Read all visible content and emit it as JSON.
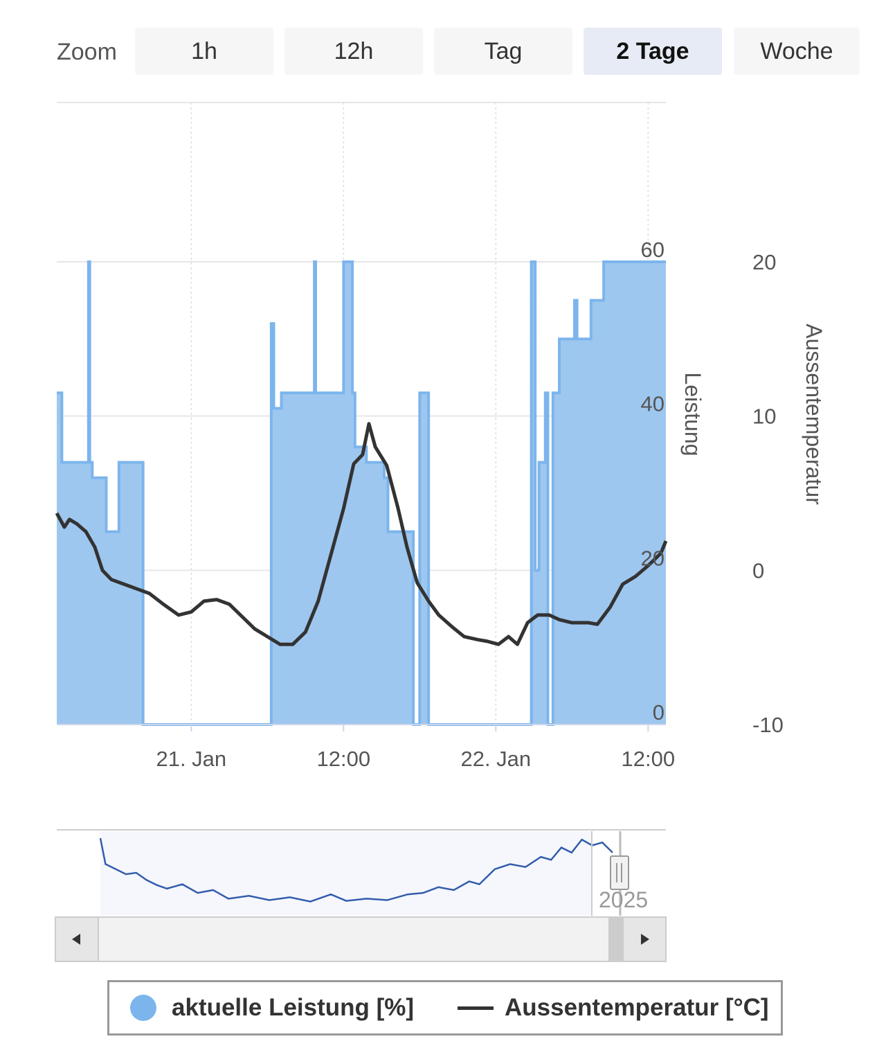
{
  "zoom": {
    "label": "Zoom",
    "buttons": [
      "1h",
      "12h",
      "Tag",
      "2 Tage",
      "Woche"
    ],
    "active_index": 3
  },
  "colors": {
    "power_fill": "#9ec7ef",
    "power_line": "#7cb5ec",
    "temperature_line": "#333333",
    "navigator_line": "#335cad",
    "active_button": "#e6ebf5"
  },
  "chart_data": {
    "type": "area",
    "x_unit": "hour since 21. Jan 00:00",
    "x_ticks": [
      {
        "x": 0,
        "label": "21. Jan"
      },
      {
        "x": 12,
        "label": "12:00"
      },
      {
        "x": 24,
        "label": "22. Jan"
      },
      {
        "x": 36,
        "label": "12:00"
      }
    ],
    "xlim": [
      -10.6,
      37.4
    ],
    "y_axes": [
      {
        "name": "Leistung",
        "ticks": [
          "0",
          "20",
          "40",
          "60"
        ],
        "ylim": [
          0,
          60
        ]
      },
      {
        "name": "Aussentemperatur",
        "ticks": [
          "-10",
          "0",
          "10",
          "20"
        ],
        "ylim": [
          -10,
          20
        ]
      }
    ],
    "series": [
      {
        "name": "aktuelle Leistung [%]",
        "type": "area-step",
        "axis": 0,
        "points": [
          [
            -10.6,
            43
          ],
          [
            -10.2,
            34
          ],
          [
            -8.3,
            34
          ],
          [
            -8.1,
            60
          ],
          [
            -8.0,
            34
          ],
          [
            -7.8,
            32
          ],
          [
            -6.7,
            25
          ],
          [
            -5.7,
            34
          ],
          [
            -3.8,
            0
          ],
          [
            6.3,
            0
          ],
          [
            6.3,
            52
          ],
          [
            6.5,
            41
          ],
          [
            7.1,
            43
          ],
          [
            9.6,
            43
          ],
          [
            9.7,
            60
          ],
          [
            9.8,
            43
          ],
          [
            11.8,
            43
          ],
          [
            12.0,
            60
          ],
          [
            12.7,
            43
          ],
          [
            12.9,
            36
          ],
          [
            13.8,
            34
          ],
          [
            15.2,
            32
          ],
          [
            15.5,
            25
          ],
          [
            17.5,
            25
          ],
          [
            17.5,
            0
          ],
          [
            18.0,
            43
          ],
          [
            18.7,
            0
          ],
          [
            26.7,
            0
          ],
          [
            26.8,
            60
          ],
          [
            27.1,
            20
          ],
          [
            27.4,
            34
          ],
          [
            27.9,
            43
          ],
          [
            28.1,
            0
          ],
          [
            28.5,
            43
          ],
          [
            29.0,
            50
          ],
          [
            30.0,
            50
          ],
          [
            30.2,
            55
          ],
          [
            30.4,
            50
          ],
          [
            31.5,
            55
          ],
          [
            32.5,
            60
          ]
        ]
      },
      {
        "name": "Aussentemperatur [°C]",
        "type": "line",
        "axis": 1,
        "points": [
          [
            -10.6,
            3.7
          ],
          [
            -10.0,
            2.8
          ],
          [
            -9.6,
            3.3
          ],
          [
            -9.0,
            3.0
          ],
          [
            -8.3,
            2.5
          ],
          [
            -7.6,
            1.5
          ],
          [
            -7.0,
            0.0
          ],
          [
            -6.3,
            -0.6
          ],
          [
            -5.3,
            -0.9
          ],
          [
            -4.3,
            -1.2
          ],
          [
            -3.3,
            -1.5
          ],
          [
            -2.2,
            -2.2
          ],
          [
            -1.0,
            -2.9
          ],
          [
            0.0,
            -2.7
          ],
          [
            1.0,
            -2.0
          ],
          [
            2.0,
            -1.9
          ],
          [
            3.0,
            -2.2
          ],
          [
            4.0,
            -3.0
          ],
          [
            5.0,
            -3.8
          ],
          [
            6.0,
            -4.3
          ],
          [
            7.0,
            -4.8
          ],
          [
            8.0,
            -4.8
          ],
          [
            9.0,
            -4.0
          ],
          [
            10.0,
            -2.0
          ],
          [
            11.0,
            1.0
          ],
          [
            12.0,
            4.0
          ],
          [
            12.8,
            6.9
          ],
          [
            13.5,
            7.5
          ],
          [
            14.0,
            9.5
          ],
          [
            14.5,
            8.0
          ],
          [
            15.4,
            6.8
          ],
          [
            16.3,
            4.0
          ],
          [
            17.0,
            1.5
          ],
          [
            17.8,
            -0.8
          ],
          [
            18.7,
            -2.0
          ],
          [
            19.5,
            -2.9
          ],
          [
            20.6,
            -3.7
          ],
          [
            21.5,
            -4.3
          ],
          [
            22.6,
            -4.5
          ],
          [
            23.3,
            -4.6
          ],
          [
            24.2,
            -4.8
          ],
          [
            25.0,
            -4.3
          ],
          [
            25.7,
            -4.8
          ],
          [
            26.5,
            -3.4
          ],
          [
            27.3,
            -2.9
          ],
          [
            28.2,
            -2.9
          ],
          [
            29.0,
            -3.2
          ],
          [
            30.0,
            -3.4
          ],
          [
            31.3,
            -3.4
          ],
          [
            32.0,
            -3.5
          ],
          [
            33.0,
            -2.4
          ],
          [
            34.0,
            -0.9
          ],
          [
            35.0,
            -0.4
          ],
          [
            36.0,
            0.3
          ],
          [
            37.0,
            1.1
          ],
          [
            37.4,
            1.9
          ]
        ]
      }
    ],
    "navigator": {
      "label": "2025",
      "points": [
        [
          0,
          0.98
        ],
        [
          0.01,
          0.62
        ],
        [
          0.03,
          0.55
        ],
        [
          0.05,
          0.48
        ],
        [
          0.07,
          0.5
        ],
        [
          0.09,
          0.4
        ],
        [
          0.11,
          0.33
        ],
        [
          0.13,
          0.28
        ],
        [
          0.16,
          0.34
        ],
        [
          0.19,
          0.22
        ],
        [
          0.22,
          0.26
        ],
        [
          0.25,
          0.14
        ],
        [
          0.29,
          0.18
        ],
        [
          0.33,
          0.12
        ],
        [
          0.37,
          0.16
        ],
        [
          0.41,
          0.1
        ],
        [
          0.45,
          0.2
        ],
        [
          0.48,
          0.11
        ],
        [
          0.52,
          0.14
        ],
        [
          0.56,
          0.12
        ],
        [
          0.6,
          0.2
        ],
        [
          0.63,
          0.22
        ],
        [
          0.66,
          0.3
        ],
        [
          0.69,
          0.26
        ],
        [
          0.72,
          0.38
        ],
        [
          0.74,
          0.34
        ],
        [
          0.77,
          0.55
        ],
        [
          0.8,
          0.62
        ],
        [
          0.83,
          0.58
        ],
        [
          0.86,
          0.72
        ],
        [
          0.88,
          0.68
        ],
        [
          0.9,
          0.85
        ],
        [
          0.92,
          0.78
        ],
        [
          0.94,
          0.96
        ],
        [
          0.96,
          0.88
        ],
        [
          0.98,
          0.92
        ],
        [
          1.0,
          0.78
        ]
      ]
    }
  },
  "legend": {
    "items": [
      "aktuelle Leistung [%]",
      "Aussentemperatur [°C]"
    ]
  }
}
